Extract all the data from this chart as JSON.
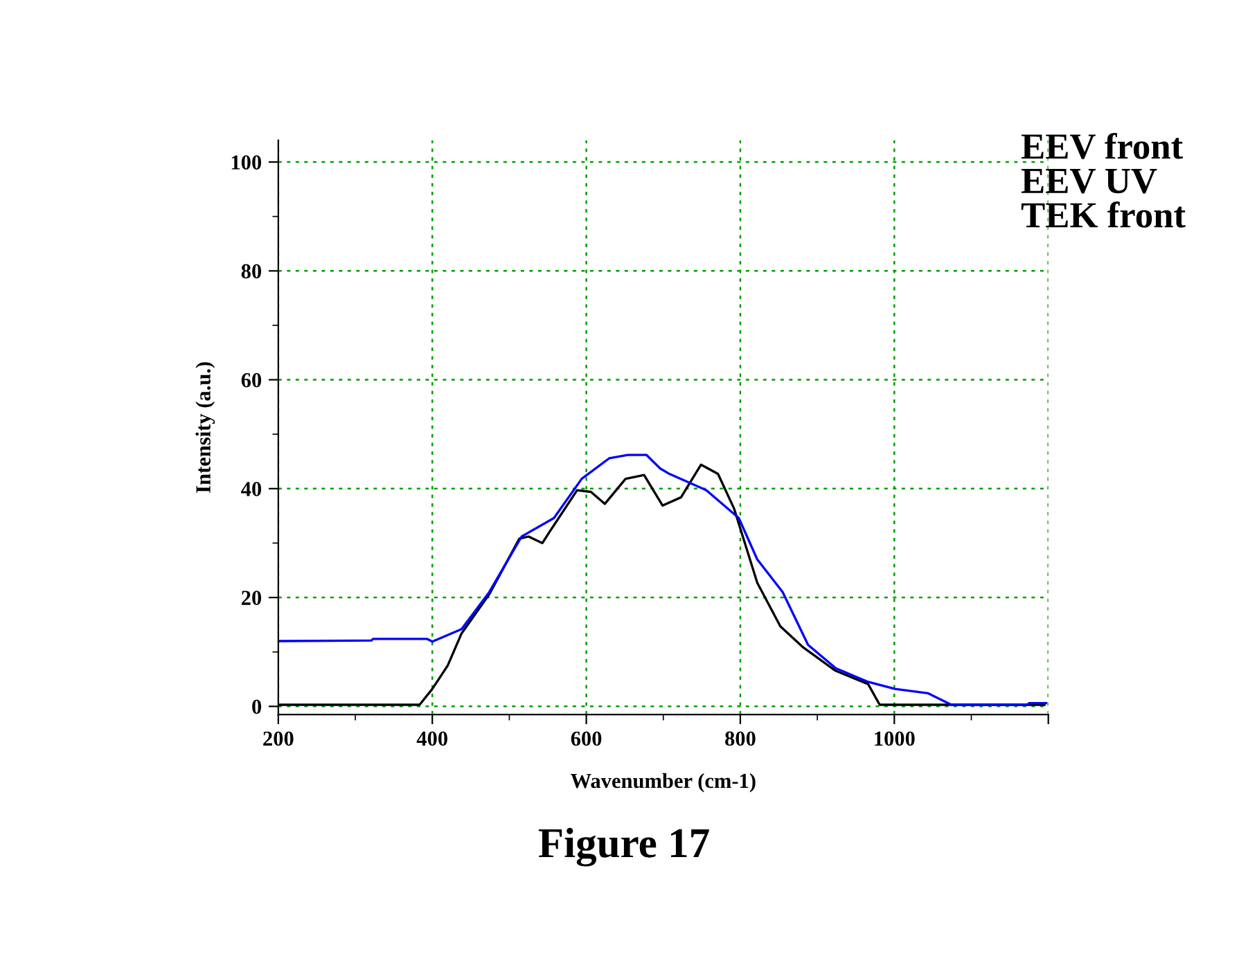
{
  "chart_data": {
    "type": "line",
    "xlabel": "Wavenumber (cm-1)",
    "ylabel": "Intensity (a.u.)",
    "annotations": [
      "EEV front",
      "EEV UV",
      "TEK front",
      "Figure 17"
    ],
    "xlim": [
      200,
      1200
    ],
    "ylim": [
      -1.5,
      104
    ],
    "xticks": [
      200,
      400,
      600,
      800,
      1000,
      {
        "value": 1200,
        "label": null
      }
    ],
    "yticks": [
      0,
      20,
      40,
      60,
      80,
      100
    ],
    "grid": true,
    "line_style": "solid",
    "marker": "none",
    "series": [
      {
        "color": "#000000",
        "x": [
          200,
          383.5,
          400,
          420,
          438,
          474,
          513,
          525,
          543,
          552,
          588,
          606,
          624,
          651,
          675,
          699,
          723,
          749,
          771,
          792,
          822,
          852,
          882,
          923,
          966,
          981,
          1195
        ],
        "values": [
          0.3,
          0.3,
          3.2,
          7.5,
          13.4,
          20.6,
          30.8,
          31.2,
          30,
          32,
          39.7,
          39.4,
          37.2,
          41.8,
          42.5,
          36.9,
          38.4,
          44.4,
          42.7,
          36.3,
          22.7,
          14.7,
          10.8,
          6.6,
          4.1,
          0.3,
          0.3
        ]
      },
      {
        "color": "#0000ff",
        "x": [
          201,
          321,
          323,
          393,
          400,
          438,
          474,
          516,
          558,
          594,
          630,
          654,
          678,
          696,
          708,
          756,
          798,
          822,
          855,
          888,
          924,
          966,
          1001,
          1044,
          1074,
          1173,
          1175,
          1197
        ],
        "values": [
          12,
          12.1,
          12.4,
          12.4,
          11.9,
          14.2,
          21,
          31.2,
          34.6,
          41.8,
          45.6,
          46.2,
          46.2,
          43.7,
          42.7,
          39.7,
          34.6,
          27,
          21,
          11.3,
          7,
          4.5,
          3.2,
          2.4,
          0.3,
          0.3,
          0.6,
          0.6
        ]
      }
    ]
  }
}
